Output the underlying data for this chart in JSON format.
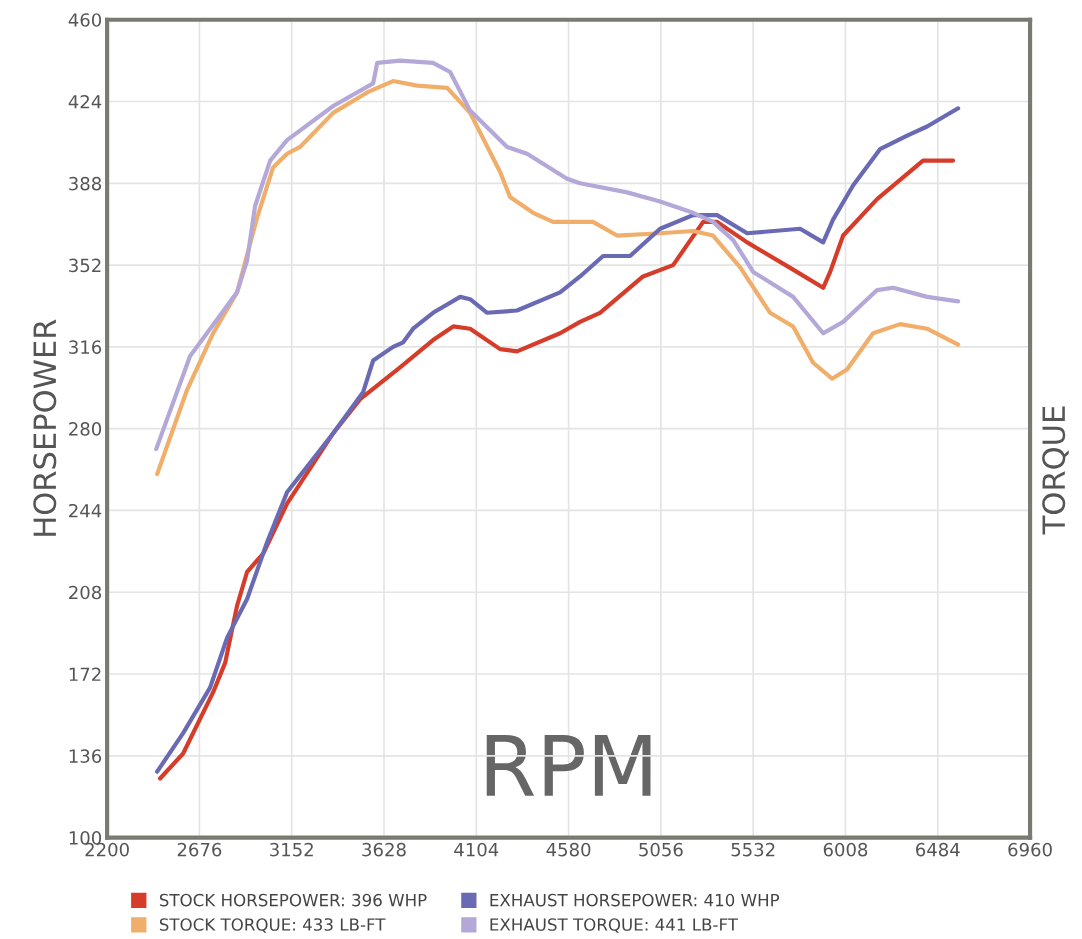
{
  "chart_data": {
    "type": "line",
    "xlabel": "RPM",
    "ylabel": "HORSEPOWER",
    "y2label": "TORQUE",
    "xlim": [
      2200,
      6960
    ],
    "xticks": [
      2200,
      2676,
      3152,
      3628,
      4104,
      4580,
      5056,
      5532,
      6008,
      6484,
      6960
    ],
    "ylim": [
      100,
      460
    ],
    "yticks": [
      100,
      136,
      172,
      208,
      244,
      280,
      316,
      352,
      388,
      424,
      460
    ],
    "grid": true,
    "legend": "bottom",
    "marker": "none",
    "line_style": "solid",
    "series": [
      {
        "name": "STOCK HORSEPOWER: 396 WHP",
        "color": "#d63c2a",
        "x": [
          2473,
          2592,
          2747,
          2809,
          2870,
          2922,
          3005,
          3128,
          3366,
          3505,
          3711,
          3881,
          3985,
          4072,
          4227,
          4314,
          4536,
          4639,
          4742,
          4964,
          5119,
          5274,
          5346,
          5501,
          5738,
          5893,
          5929,
          5996,
          6171,
          6408,
          6563
        ],
        "values": [
          126,
          137,
          164,
          177,
          202,
          217,
          225,
          247,
          278,
          293,
          307,
          319,
          325,
          324,
          315,
          314,
          322,
          327,
          331,
          347,
          352,
          371,
          371,
          362,
          350,
          342,
          349,
          365,
          381,
          398,
          398
        ]
      },
      {
        "name": "STOCK TORQUE: 433 LB-FT",
        "color": "#f0ae6a",
        "x": [
          2458,
          2612,
          2747,
          2870,
          2974,
          3056,
          3128,
          3195,
          3366,
          3541,
          3675,
          3799,
          3954,
          4072,
          4227,
          4278,
          4397,
          4500,
          4639,
          4706,
          4830,
          5052,
          5222,
          5325,
          5465,
          5619,
          5738,
          5841,
          5939,
          6016,
          6150,
          6290,
          6429,
          6589
        ],
        "values": [
          260,
          297,
          322,
          340,
          373,
          395,
          401,
          404,
          419,
          428,
          433,
          431,
          430,
          419,
          393,
          382,
          375,
          371,
          371,
          371,
          365,
          366,
          367,
          365,
          351,
          331,
          325,
          309,
          302,
          306,
          322,
          326,
          324,
          317
        ]
      },
      {
        "name": "EXHAUST HORSEPOWER: 410 WHP",
        "color": "#6a6ab4",
        "x": [
          2458,
          2592,
          2731,
          2819,
          2922,
          3025,
          3128,
          3366,
          3520,
          3572,
          3675,
          3727,
          3778,
          3881,
          4021,
          4072,
          4160,
          4314,
          4536,
          4639,
          4758,
          4897,
          5052,
          5222,
          5346,
          5501,
          5774,
          5893,
          5944,
          6047,
          6186,
          6326,
          6429,
          6589
        ],
        "values": [
          129,
          146,
          166,
          188,
          205,
          230,
          252,
          278,
          296,
          310,
          316,
          318,
          324,
          331,
          338,
          337,
          331,
          332,
          340,
          347,
          356,
          356,
          368,
          374,
          374,
          366,
          368,
          362,
          372,
          387,
          403,
          409,
          413,
          421
        ]
      },
      {
        "name": "EXHAUST TORQUE: 441 LB-FT",
        "color": "#b4a8d8",
        "x": [
          2453,
          2628,
          2767,
          2870,
          2922,
          2963,
          3041,
          3128,
          3366,
          3572,
          3593,
          3711,
          3881,
          3969,
          4072,
          4263,
          4366,
          4572,
          4639,
          4882,
          5052,
          5222,
          5325,
          5429,
          5532,
          5738,
          5893,
          5996,
          6171,
          6254,
          6429,
          6589
        ],
        "values": [
          271,
          312,
          328,
          340,
          354,
          378,
          398,
          407,
          422,
          432,
          441,
          442,
          441,
          437,
          420,
          404,
          401,
          390,
          388,
          384,
          380,
          375,
          371,
          363,
          349,
          338,
          322,
          327,
          341,
          342,
          338,
          336
        ]
      }
    ]
  }
}
